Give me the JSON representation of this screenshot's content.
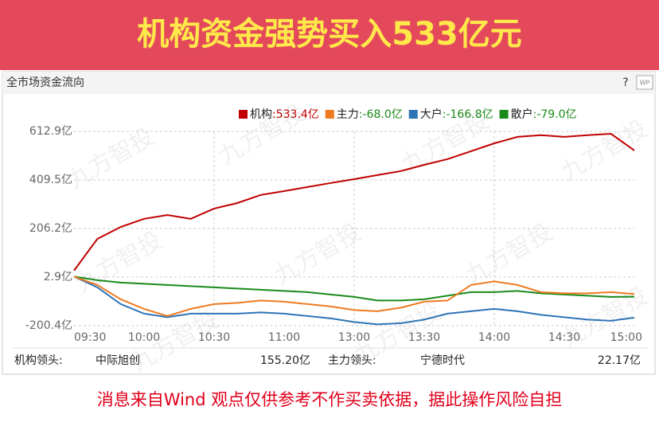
{
  "header": {
    "title": "机构资金强势买入533亿元"
  },
  "panel": {
    "title": "全市场资金流向",
    "help": "?",
    "icon": "WP"
  },
  "watermark": "九方智投",
  "chart_data": {
    "type": "line",
    "categories": [
      "09:30",
      null,
      null,
      "10:00",
      null,
      null,
      "10:30",
      null,
      null,
      "11:00",
      null,
      null,
      "13:00",
      null,
      null,
      "13:30",
      null,
      null,
      "14:00",
      null,
      null,
      "14:30",
      null,
      null,
      "15:00"
    ],
    "series": [
      {
        "name": "机构",
        "legend_value": ":533.4亿",
        "color": "#c00000",
        "values": [
          30,
          163,
          213,
          247,
          263,
          247,
          290,
          313,
          347,
          363,
          380,
          397,
          413,
          430,
          447,
          473,
          497,
          530,
          563,
          590,
          597,
          590,
          597,
          603,
          533.4
        ]
      },
      {
        "name": "主力",
        "legend_value": ":-68.0亿",
        "color": "#ee7a22",
        "values": [
          5,
          -30,
          -90,
          -130,
          -160,
          -130,
          -110,
          -105,
          -95,
          -100,
          -110,
          -120,
          -135,
          -140,
          -125,
          -100,
          -95,
          -30,
          -15,
          -30,
          -60,
          -65,
          -65,
          -60,
          -68.0
        ]
      },
      {
        "name": "大户",
        "legend_value": ":-166.8亿",
        "color": "#2e75b6",
        "values": [
          5,
          -40,
          -110,
          -150,
          -165,
          -150,
          -150,
          -150,
          -145,
          -150,
          -160,
          -170,
          -185,
          -195,
          -190,
          -175,
          -150,
          -140,
          -130,
          -140,
          -155,
          -165,
          -175,
          -180,
          -166.8
        ]
      },
      {
        "name": "散户",
        "legend_value": ":-79.0亿",
        "color": "#1a8a1a",
        "values": [
          5,
          -10,
          -20,
          -25,
          -30,
          -35,
          -40,
          -45,
          -50,
          -55,
          -60,
          -70,
          -80,
          -95,
          -95,
          -90,
          -75,
          -60,
          -60,
          -55,
          -65,
          -70,
          -75,
          -80,
          -79.0
        ]
      }
    ],
    "ylim": [
      -200.4,
      612.9
    ],
    "yticks": [
      {
        "value": -200.4,
        "label": "-200.4亿"
      },
      {
        "value": 2.9,
        "label": "2.9亿"
      },
      {
        "value": 206.2,
        "label": "206.2亿"
      },
      {
        "value": 409.5,
        "label": "409.5亿"
      },
      {
        "value": 612.9,
        "label": "612.9亿"
      }
    ],
    "grid": true
  },
  "footer": {
    "inst_label": "机构领头:",
    "inst_stock": "中际旭创",
    "inst_value": "155.20亿",
    "main_label": "主力领头:",
    "main_stock": "宁德时代",
    "main_value": "22.17亿"
  },
  "disclaimer": "消息来自Wind  观点仅供参考不作买卖依据，据此操作风险自担"
}
